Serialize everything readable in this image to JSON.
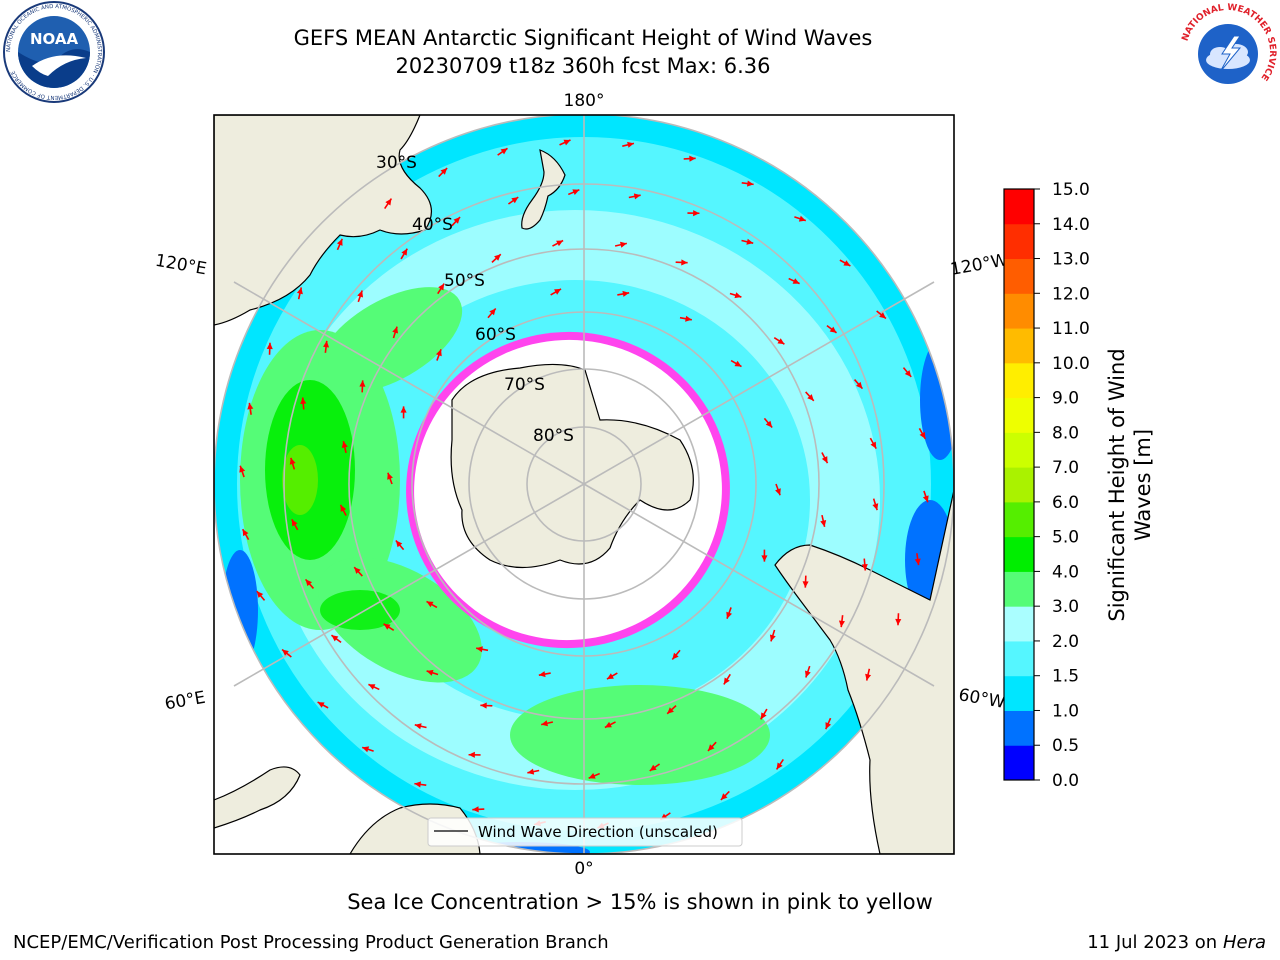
{
  "header": {
    "title_line1": "GEFS MEAN Antarctic Significant Height of Wind Waves",
    "title_line2": "20230709 t18z 360h fcst   Max: 6.36"
  },
  "logos": {
    "noaa_text": "NOAA",
    "noaa_ring_text": "NATIONAL OCEANIC AND ATMOSPHERIC ADMINISTRATION · U.S. DEPARTMENT OF COMMERCE",
    "nws_ring_text": "NATIONAL WEATHER SERVICE"
  },
  "map": {
    "projection": "south-polar-stereographic",
    "longitude_labels": [
      "180°",
      "120°E",
      "120°W",
      "60°E",
      "60°W",
      "0°"
    ],
    "latitude_labels": [
      "30°S",
      "40°S",
      "50°S",
      "60°S",
      "70°S",
      "80°S"
    ],
    "legend_label": "Wind Wave Direction (unscaled)",
    "colors": {
      "land": "#eeedde",
      "sea_ice": "#ffffff",
      "ice_edge": "#ff44ee",
      "arrow": "#ff0000",
      "grid": "#bbbbbb"
    }
  },
  "colorbar": {
    "label": "Significant Height of Wind Waves [m]",
    "label_line1": "Significant Height of Wind",
    "label_line2": "Waves [m]",
    "unit": "m",
    "ticks": [
      "0.0",
      "0.5",
      "1.0",
      "1.5",
      "2.0",
      "3.0",
      "4.0",
      "5.0",
      "6.0",
      "7.0",
      "8.0",
      "9.0",
      "10.0",
      "11.0",
      "12.0",
      "13.0",
      "14.0",
      "15.0"
    ],
    "colors": [
      "#0000ff",
      "#0072ff",
      "#00e6ff",
      "#55f6ff",
      "#aafeff",
      "#55fc77",
      "#00ee00",
      "#55ee00",
      "#aaf200",
      "#ccff00",
      "#eeff00",
      "#ffee00",
      "#ffbb00",
      "#ff8c00",
      "#ff5d00",
      "#ff2e00",
      "#ff0000"
    ]
  },
  "chart_data": {
    "type": "heatmap",
    "title": "GEFS MEAN Antarctic Significant Height of Wind Waves",
    "variable": "Significant Height of Wind Waves",
    "unit": "m",
    "run": "20230709 t18z",
    "forecast_hour": "360h",
    "max_value": 6.36,
    "color_scale_range": [
      0.0,
      15.0
    ]
  },
  "footer": {
    "note": "Sea Ice Concentration > 15% is shown in pink to yellow",
    "left": "NCEP/EMC/Verification Post Processing Product Generation Branch",
    "right_prefix": "11 Jul 2023 on ",
    "right_machine": "Hera"
  }
}
